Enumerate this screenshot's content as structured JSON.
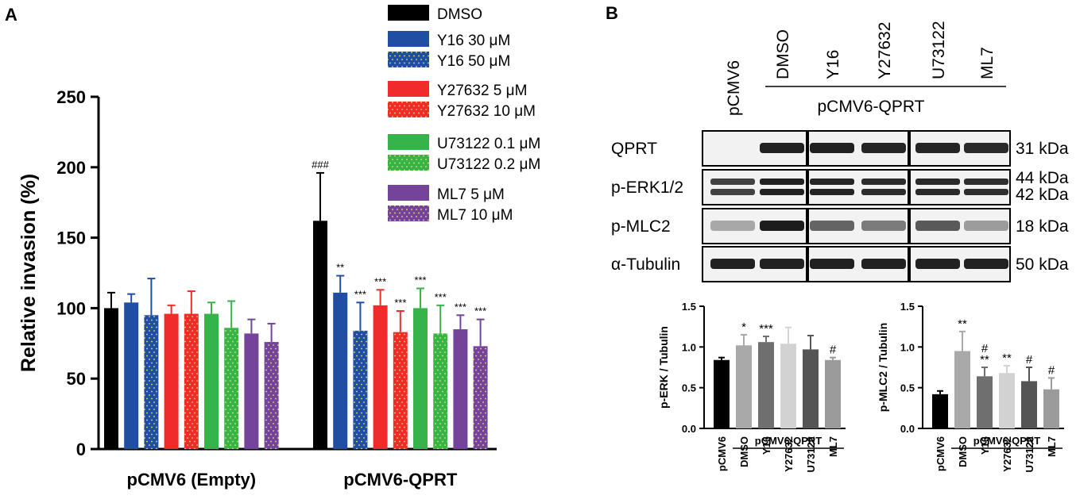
{
  "panel_labels": {
    "a": "A",
    "b": "B"
  },
  "colors": {
    "DMSO": "#000000",
    "Y16": "#1f4ea3",
    "Y27632": "#ef2b2b",
    "U73122": "#36b44a",
    "ML7": "#74449a",
    "dot": "#e7e36a"
  },
  "chart_data": [
    {
      "type": "bar",
      "panel": "A",
      "ylabel": "Relative invasion (%)",
      "xlabel": "",
      "ylim": [
        0,
        250
      ],
      "yticks": [
        "0",
        "50",
        "100",
        "150",
        "200",
        "250"
      ],
      "categories": [
        "pCMV6 (Empty)",
        "pCMV6-QPRT"
      ],
      "legend_position": "top-right",
      "series": [
        {
          "name": "DMSO",
          "color": "#000000",
          "pattern": "solid",
          "values": [
            100,
            162
          ],
          "errors": [
            11,
            34
          ],
          "annotations": [
            "",
            "###"
          ]
        },
        {
          "name": "Y16 30 μM",
          "color": "#1f4ea3",
          "pattern": "solid",
          "values": [
            104,
            111
          ],
          "errors": [
            6,
            12
          ],
          "annotations": [
            "",
            "**"
          ]
        },
        {
          "name": "Y16 50 μM",
          "color": "#1f4ea3",
          "pattern": "dotted",
          "values": [
            95,
            84
          ],
          "errors": [
            26,
            20
          ],
          "annotations": [
            "",
            "***"
          ]
        },
        {
          "name": "Y27632 5 μM",
          "color": "#ef2b2b",
          "pattern": "solid",
          "values": [
            96,
            102
          ],
          "errors": [
            6,
            11
          ],
          "annotations": [
            "",
            "***"
          ]
        },
        {
          "name": "Y27632 10 μM",
          "color": "#ef2b2b",
          "pattern": "dotted",
          "values": [
            96,
            83
          ],
          "errors": [
            16,
            15
          ],
          "annotations": [
            "",
            "***"
          ]
        },
        {
          "name": "U73122 0.1 μM",
          "color": "#36b44a",
          "pattern": "solid",
          "values": [
            96,
            100
          ],
          "errors": [
            8,
            14
          ],
          "annotations": [
            "",
            "***"
          ]
        },
        {
          "name": "U73122 0.2 μM",
          "color": "#36b44a",
          "pattern": "dotted",
          "values": [
            86,
            82
          ],
          "errors": [
            19,
            20
          ],
          "annotations": [
            "",
            "***"
          ]
        },
        {
          "name": "ML7 5 μM",
          "color": "#74449a",
          "pattern": "solid",
          "values": [
            82,
            85
          ],
          "errors": [
            10,
            10
          ],
          "annotations": [
            "",
            "***"
          ]
        },
        {
          "name": "ML7 10 μM",
          "color": "#74449a",
          "pattern": "dotted",
          "values": [
            76,
            73
          ],
          "errors": [
            13,
            19
          ],
          "annotations": [
            "",
            "***"
          ]
        }
      ]
    },
    {
      "type": "bar",
      "panel": "B-left",
      "ylabel": "p-ERK / Tubulin",
      "xlabel": "",
      "ylim": [
        0,
        1.5
      ],
      "yticks": [
        "0.0",
        "0.5",
        "1.0",
        "1.5"
      ],
      "categories": [
        "pCMV6",
        "DMSO",
        "Y16",
        "Y27632",
        "U73122",
        "ML7"
      ],
      "group_label": "pCMV6-QPRT",
      "colors": [
        "#000000",
        "#a9a9a9",
        "#6f6f6f",
        "#d2d2d2",
        "#555555",
        "#9b9b9b"
      ],
      "values": [
        0.84,
        1.02,
        1.06,
        1.04,
        0.97,
        0.84
      ],
      "errors": [
        0.03,
        0.13,
        0.07,
        0.2,
        0.17,
        0.03
      ],
      "annotations": [
        "",
        "*",
        "***",
        "",
        "",
        "#"
      ]
    },
    {
      "type": "bar",
      "panel": "B-right",
      "ylabel": "p-MLC2 / Tubulin",
      "xlabel": "",
      "ylim": [
        0,
        1.5
      ],
      "yticks": [
        "0.0",
        "0.5",
        "1.0",
        "1.5"
      ],
      "categories": [
        "pCMV6",
        "DMSO",
        "Y16",
        "Y27632",
        "U73122",
        "ML7"
      ],
      "group_label": "pCMV6-QPRT",
      "colors": [
        "#000000",
        "#a9a9a9",
        "#6f6f6f",
        "#d2d2d2",
        "#555555",
        "#9b9b9b"
      ],
      "values": [
        0.42,
        0.95,
        0.64,
        0.68,
        0.58,
        0.48
      ],
      "errors": [
        0.04,
        0.24,
        0.11,
        0.09,
        0.17,
        0.14
      ],
      "annotations": [
        "",
        "**",
        "#|**",
        "**",
        "#",
        "#"
      ]
    }
  ],
  "blot": {
    "lanes": [
      "pCMV6",
      "DMSO",
      "Y16",
      "Y27632",
      "U73122",
      "ML7"
    ],
    "group_label": "pCMV6-QPRT",
    "rows": [
      {
        "label": "QPRT",
        "kda": [
          "31 kDa"
        ],
        "intensity": [
          0.0,
          0.9,
          0.9,
          0.88,
          0.88,
          0.86
        ]
      },
      {
        "label": "p-ERK1/2",
        "kda": [
          "44 kDa",
          "42 kDa"
        ],
        "intensity": [
          0.75,
          0.9,
          0.88,
          0.85,
          0.86,
          0.84
        ]
      },
      {
        "label": "p-MLC2",
        "kda": [
          "18 kDa"
        ],
        "intensity": [
          0.3,
          0.92,
          0.6,
          0.5,
          0.65,
          0.35
        ]
      },
      {
        "label": "α-Tubulin",
        "kda": [
          "50 kDa"
        ],
        "intensity": [
          0.9,
          0.9,
          0.9,
          0.9,
          0.9,
          0.9
        ]
      }
    ]
  }
}
